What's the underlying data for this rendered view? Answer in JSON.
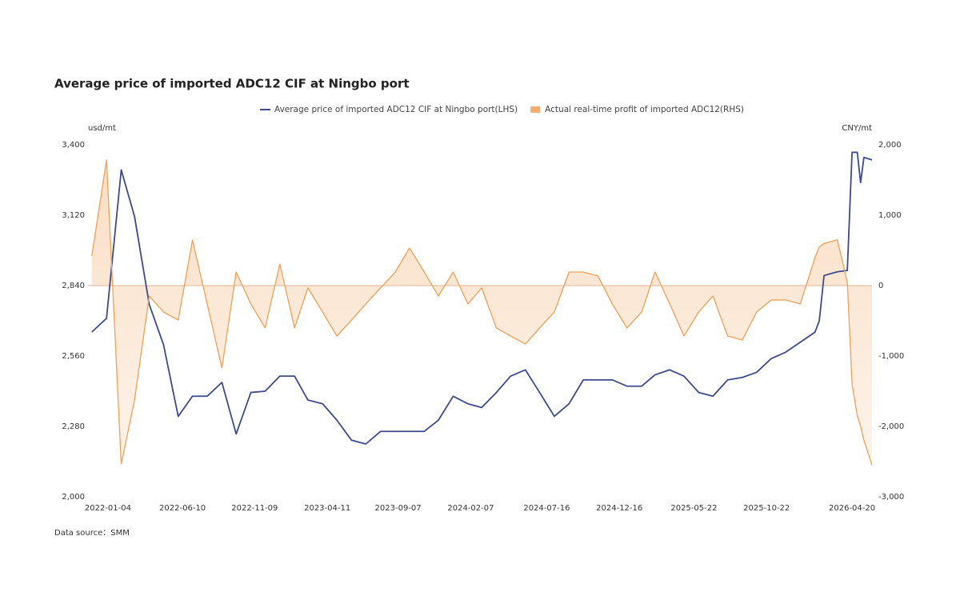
{
  "chart_data": {
    "type": "line",
    "title": "Average price of imported ADC12 CIF at Ningbo port",
    "ylabel": "usd/mt",
    "y2label": "CNY/mt",
    "source": "Data source：SMM",
    "x": [
      "2021-12-01",
      "2022-01-01",
      "2022-02-01",
      "2022-03-01",
      "2022-04-01",
      "2022-05-01",
      "2022-06-01",
      "2022-07-01",
      "2022-08-01",
      "2022-09-01",
      "2022-10-01",
      "2022-11-01",
      "2022-12-01",
      "2023-01-01",
      "2023-02-01",
      "2023-03-01",
      "2023-04-01",
      "2023-05-01",
      "2023-06-01",
      "2023-07-01",
      "2023-08-01",
      "2023-09-01",
      "2023-10-01",
      "2023-11-01",
      "2023-12-01",
      "2024-01-01",
      "2024-02-01",
      "2024-03-01",
      "2024-04-01",
      "2024-05-01",
      "2024-06-01",
      "2024-07-01",
      "2024-08-01",
      "2024-09-01",
      "2024-10-01",
      "2024-11-01",
      "2024-12-01",
      "2025-01-01",
      "2025-02-01",
      "2025-03-01",
      "2025-04-01",
      "2025-05-01",
      "2025-06-01",
      "2025-07-01",
      "2025-08-01",
      "2025-09-01",
      "2025-10-01",
      "2025-11-01",
      "2025-12-01",
      "2026-01-01",
      "2026-02-01",
      "2026-02-10",
      "2026-02-20",
      "2026-03-20",
      "2026-04-10",
      "2026-04-20",
      "2026-05-01",
      "2026-05-08",
      "2026-05-15",
      "2026-06-01"
    ],
    "xlim": [
      "2021-11-23",
      "2026-06-01"
    ],
    "xticks": [
      "2022-01-04",
      "2022-06-10",
      "2022-11-09",
      "2023-04-11",
      "2023-09-07",
      "2024-02-07",
      "2024-07-16",
      "2024-12-16",
      "2025-05-22",
      "2025-10-22",
      "2026-04-20"
    ],
    "ylim": [
      2000,
      3400
    ],
    "yticks": [
      {
        "value": 2000,
        "label": "2,000"
      },
      {
        "value": 2280,
        "label": "2,280"
      },
      {
        "value": 2560,
        "label": "2,560"
      },
      {
        "value": 2840,
        "label": "2,840"
      },
      {
        "value": 3120,
        "label": "3,120"
      },
      {
        "value": 3400,
        "label": "3,400"
      }
    ],
    "y2lim": [
      -3000,
      2000
    ],
    "y2ticks": [
      {
        "value": -3000,
        "label": "-3,000"
      },
      {
        "value": -2000,
        "label": "-2,000"
      },
      {
        "value": -1000,
        "label": "-1,000"
      },
      0,
      {
        "value": 1000,
        "label": "1,000"
      },
      {
        "value": 2000,
        "label": "2,000"
      }
    ],
    "legend": "top",
    "series": [
      {
        "name": "Average price of imported ADC12 CIF at Ningbo port(LHS)",
        "color": "#3d4a8f",
        "values": [
          2655,
          2710,
          3300,
          3115,
          2765,
          2605,
          2320,
          2400,
          2400,
          2455,
          2250,
          2415,
          2420,
          2480,
          2480,
          2385,
          2370,
          2305,
          2225,
          2210,
          2260,
          2260,
          2260,
          2260,
          2305,
          2400,
          2370,
          2355,
          2415,
          2480,
          2505,
          2415,
          2320,
          2370,
          2465,
          2465,
          2465,
          2440,
          2440,
          2485,
          2505,
          2480,
          2415,
          2400,
          2465,
          2475,
          2495,
          2550,
          2575,
          2615,
          2655,
          2700,
          2880,
          2895,
          2900,
          3370,
          3370,
          3250,
          3350,
          3340
        ]
      },
      {
        "name": "Actual real-time profit of imported ADC12(RHS)",
        "color": "#f0a058",
        "axis": "y2",
        "area": true,
        "values": [
          420,
          1785,
          -2535,
          -1625,
          -148,
          -375,
          -489,
          648,
          -261,
          -1170,
          193,
          -261,
          -602,
          307,
          -602,
          -34,
          -375,
          -716,
          -489,
          -261,
          -34,
          193,
          534,
          193,
          -148,
          193,
          -261,
          -34,
          -602,
          -716,
          -830,
          -602,
          -375,
          193,
          193,
          136,
          -261,
          -602,
          -375,
          193,
          -261,
          -716,
          -375,
          -148,
          -716,
          -773,
          -375,
          -205,
          -205,
          -261,
          400,
          550,
          600,
          650,
          50,
          -1400,
          -1850,
          -2000,
          -2200,
          -2550
        ]
      }
    ]
  }
}
